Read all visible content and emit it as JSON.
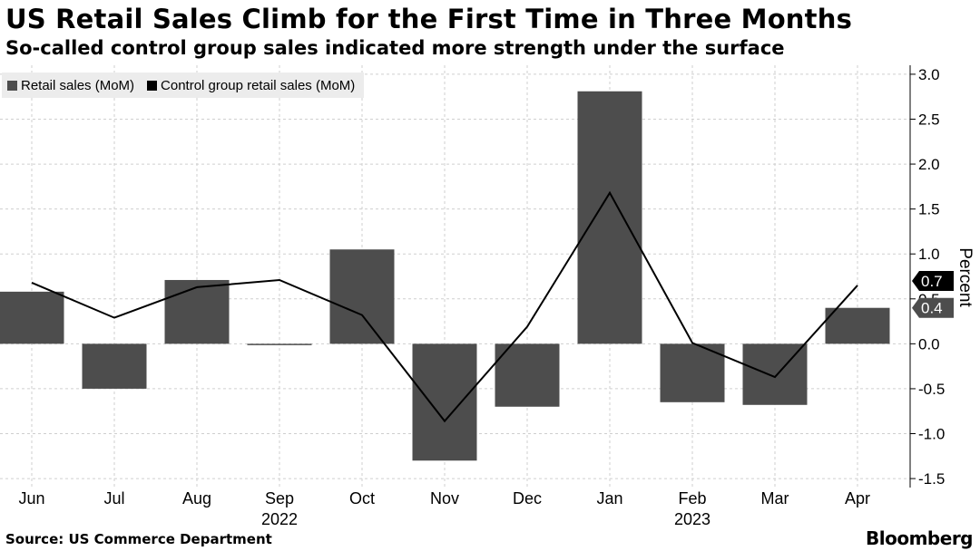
{
  "header": {
    "title": "US Retail Sales Climb for the First Time in Three Months",
    "subtitle": "So-called control group sales indicated more strength under the surface"
  },
  "legend": {
    "items": [
      {
        "label": "Retail sales (MoM)",
        "color": "#4d4d4d"
      },
      {
        "label": "Control group retail sales (MoM)",
        "color": "#000000"
      }
    ]
  },
  "footer": {
    "source": "Source: US Commerce Department",
    "brand": "Bloomberg"
  },
  "chart_data": {
    "type": "bar",
    "categories": [
      "Jun",
      "Jul",
      "Aug",
      "Sep",
      "Oct",
      "Nov",
      "Dec",
      "Jan",
      "Feb",
      "Mar",
      "Apr"
    ],
    "year_labels": [
      {
        "category": "Sep",
        "label": "2022"
      },
      {
        "category": "Feb",
        "label": "2023"
      }
    ],
    "series": [
      {
        "name": "Retail sales (MoM)",
        "type": "bar",
        "color": "#4d4d4d",
        "values": [
          0.58,
          -0.5,
          0.71,
          0.0,
          1.05,
          -1.3,
          -0.7,
          2.81,
          -0.65,
          -0.68,
          0.4
        ]
      },
      {
        "name": "Control group retail sales (MoM)",
        "type": "line",
        "color": "#000000",
        "values": [
          0.68,
          0.29,
          0.63,
          0.71,
          0.32,
          -0.86,
          0.19,
          1.68,
          0.01,
          -0.37,
          0.65
        ]
      }
    ],
    "end_labels": [
      {
        "value": 0.7,
        "label": "0.7",
        "bg": "#000000",
        "fg": "#ffffff"
      },
      {
        "value": 0.4,
        "label": "0.4",
        "bg": "#4d4d4d",
        "fg": "#ffffff"
      }
    ],
    "ylabel": "Percent",
    "ylim": [
      -1.6,
      3.1
    ],
    "yticks": [
      3.0,
      2.5,
      2.0,
      1.5,
      1.0,
      0.5,
      0.0,
      -0.5,
      -1.0,
      -1.5
    ],
    "ytick_labels": [
      "3.0",
      "2.5",
      "2.0",
      "1.5",
      "1.0",
      "0.5",
      "0.0",
      "-0.5",
      "-1.0",
      "-1.5"
    ],
    "y_axis_position": "right",
    "grid": true
  }
}
